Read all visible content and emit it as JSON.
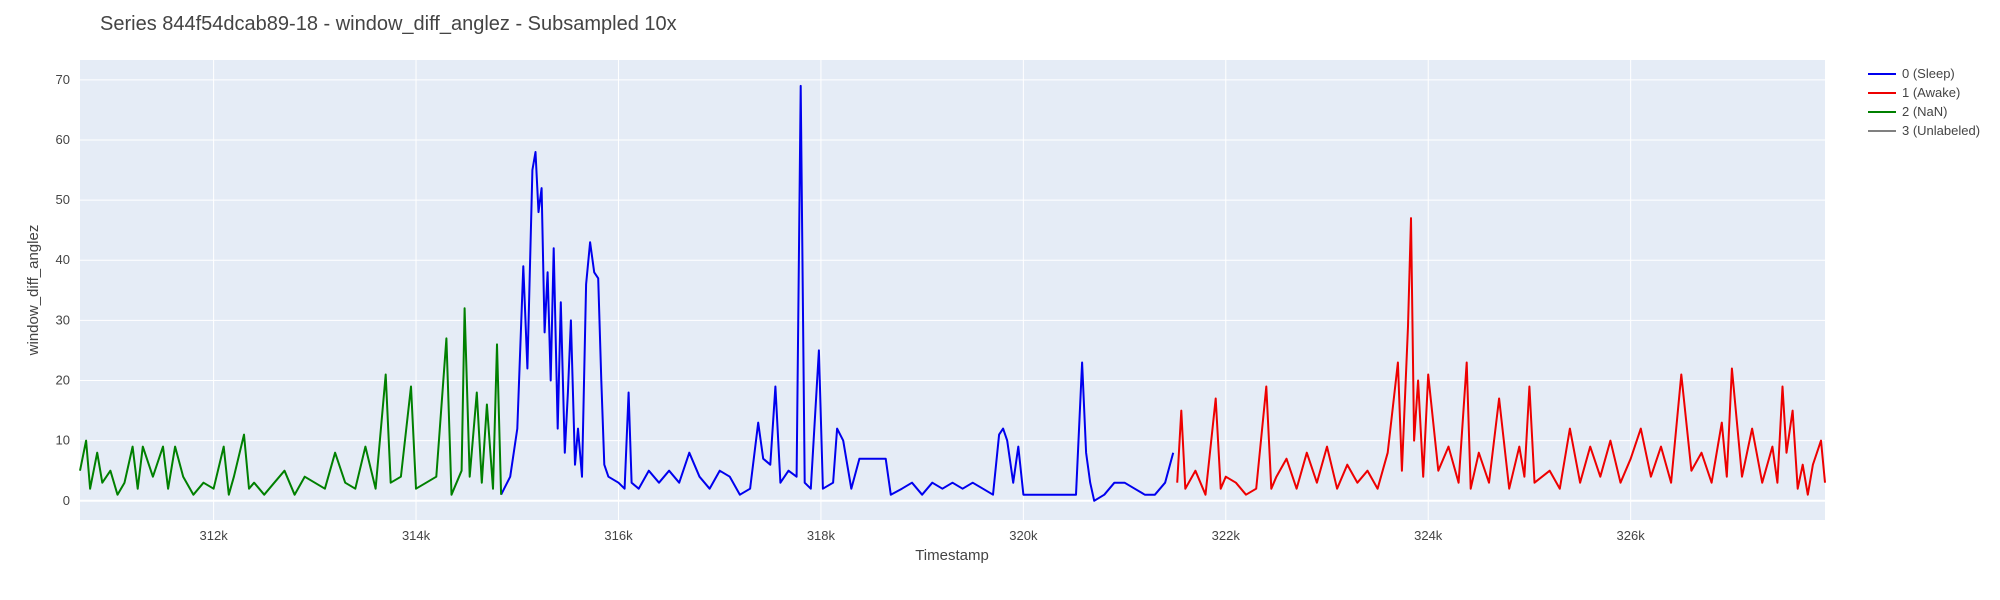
{
  "chart_data": {
    "type": "line",
    "title": "Series 844f54dcab89-18 - window_diff_anglez - Subsampled 10x",
    "xlabel": "Timestamp",
    "ylabel": "window_diff_anglez",
    "xlim": [
      310680,
      327920
    ],
    "ylim": [
      -3.2,
      73.3
    ],
    "x_ticks": [
      312000,
      314000,
      316000,
      318000,
      320000,
      322000,
      324000,
      326000
    ],
    "x_tick_labels": [
      "312k",
      "314k",
      "316k",
      "318k",
      "320k",
      "322k",
      "324k",
      "326k"
    ],
    "y_ticks": [
      0,
      10,
      20,
      30,
      40,
      50,
      60,
      70
    ],
    "y_tick_labels": [
      "0",
      "10",
      "20",
      "30",
      "40",
      "50",
      "60",
      "70"
    ],
    "grid": true,
    "legend_position": "top-right",
    "plot_background": "#e5ecf6",
    "series": [
      {
        "name": "0 (Sleep)",
        "color": "#0000ee",
        "points": [
          [
            314840,
            1
          ],
          [
            314930,
            4
          ],
          [
            315000,
            12
          ],
          [
            315060,
            39
          ],
          [
            315100,
            22
          ],
          [
            315150,
            55
          ],
          [
            315180,
            58
          ],
          [
            315210,
            48
          ],
          [
            315240,
            52
          ],
          [
            315270,
            28
          ],
          [
            315300,
            38
          ],
          [
            315330,
            20
          ],
          [
            315360,
            42
          ],
          [
            315400,
            12
          ],
          [
            315430,
            33
          ],
          [
            315470,
            8
          ],
          [
            315500,
            18
          ],
          [
            315530,
            30
          ],
          [
            315570,
            6
          ],
          [
            315600,
            12
          ],
          [
            315640,
            4
          ],
          [
            315680,
            36
          ],
          [
            315720,
            43
          ],
          [
            315760,
            38
          ],
          [
            315800,
            37
          ],
          [
            315830,
            20
          ],
          [
            315860,
            6
          ],
          [
            315900,
            4
          ],
          [
            316000,
            3
          ],
          [
            316060,
            2
          ],
          [
            316100,
            18
          ],
          [
            316130,
            3
          ],
          [
            316200,
            2
          ],
          [
            316300,
            5
          ],
          [
            316400,
            3
          ],
          [
            316500,
            5
          ],
          [
            316600,
            3
          ],
          [
            316700,
            8
          ],
          [
            316800,
            4
          ],
          [
            316900,
            2
          ],
          [
            317000,
            5
          ],
          [
            317100,
            4
          ],
          [
            317200,
            1
          ],
          [
            317300,
            2
          ],
          [
            317380,
            13
          ],
          [
            317430,
            7
          ],
          [
            317500,
            6
          ],
          [
            317550,
            19
          ],
          [
            317600,
            3
          ],
          [
            317680,
            5
          ],
          [
            317760,
            4
          ],
          [
            317800,
            69
          ],
          [
            317840,
            3
          ],
          [
            317900,
            2
          ],
          [
            317980,
            25
          ],
          [
            318020,
            2
          ],
          [
            318120,
            3
          ],
          [
            318160,
            12
          ],
          [
            318220,
            10
          ],
          [
            318300,
            2
          ],
          [
            318380,
            7
          ],
          [
            318500,
            7
          ],
          [
            318640,
            7
          ],
          [
            318690,
            1
          ],
          [
            318800,
            2
          ],
          [
            318900,
            3
          ],
          [
            319000,
            1
          ],
          [
            319100,
            3
          ],
          [
            319200,
            2
          ],
          [
            319300,
            3
          ],
          [
            319400,
            2
          ],
          [
            319500,
            3
          ],
          [
            319600,
            2
          ],
          [
            319700,
            1
          ],
          [
            319760,
            11
          ],
          [
            319800,
            12
          ],
          [
            319840,
            10
          ],
          [
            319900,
            3
          ],
          [
            319950,
            9
          ],
          [
            320000,
            1
          ],
          [
            320200,
            1
          ],
          [
            320400,
            1
          ],
          [
            320520,
            1
          ],
          [
            320580,
            23
          ],
          [
            320620,
            8
          ],
          [
            320660,
            3
          ],
          [
            320700,
            0
          ],
          [
            320800,
            1
          ],
          [
            320900,
            3
          ],
          [
            321000,
            3
          ],
          [
            321100,
            2
          ],
          [
            321200,
            1
          ],
          [
            321300,
            1
          ],
          [
            321400,
            3
          ],
          [
            321480,
            8
          ]
        ]
      },
      {
        "name": "1 (Awake)",
        "color": "#ee0000",
        "points": [
          [
            321520,
            3
          ],
          [
            321560,
            15
          ],
          [
            321600,
            2
          ],
          [
            321700,
            5
          ],
          [
            321800,
            1
          ],
          [
            321900,
            17
          ],
          [
            321950,
            2
          ],
          [
            322000,
            4
          ],
          [
            322100,
            3
          ],
          [
            322200,
            1
          ],
          [
            322300,
            2
          ],
          [
            322400,
            19
          ],
          [
            322450,
            2
          ],
          [
            322500,
            4
          ],
          [
            322600,
            7
          ],
          [
            322700,
            2
          ],
          [
            322800,
            8
          ],
          [
            322900,
            3
          ],
          [
            323000,
            9
          ],
          [
            323100,
            2
          ],
          [
            323200,
            6
          ],
          [
            323300,
            3
          ],
          [
            323400,
            5
          ],
          [
            323500,
            2
          ],
          [
            323600,
            8
          ],
          [
            323700,
            23
          ],
          [
            323740,
            5
          ],
          [
            323800,
            29
          ],
          [
            323830,
            47
          ],
          [
            323860,
            10
          ],
          [
            323900,
            20
          ],
          [
            323950,
            4
          ],
          [
            324000,
            21
          ],
          [
            324100,
            5
          ],
          [
            324200,
            9
          ],
          [
            324300,
            3
          ],
          [
            324380,
            23
          ],
          [
            324420,
            2
          ],
          [
            324500,
            8
          ],
          [
            324600,
            3
          ],
          [
            324700,
            17
          ],
          [
            324800,
            2
          ],
          [
            324900,
            9
          ],
          [
            324950,
            4
          ],
          [
            325000,
            19
          ],
          [
            325050,
            3
          ],
          [
            325200,
            5
          ],
          [
            325300,
            2
          ],
          [
            325400,
            12
          ],
          [
            325500,
            3
          ],
          [
            325600,
            9
          ],
          [
            325700,
            4
          ],
          [
            325800,
            10
          ],
          [
            325900,
            3
          ],
          [
            326000,
            7
          ],
          [
            326100,
            12
          ],
          [
            326200,
            4
          ],
          [
            326300,
            9
          ],
          [
            326400,
            3
          ],
          [
            326500,
            21
          ],
          [
            326600,
            5
          ],
          [
            326700,
            8
          ],
          [
            326800,
            3
          ],
          [
            326900,
            13
          ],
          [
            326950,
            4
          ],
          [
            327000,
            22
          ],
          [
            327100,
            4
          ],
          [
            327200,
            12
          ],
          [
            327300,
            3
          ],
          [
            327400,
            9
          ],
          [
            327450,
            3
          ],
          [
            327500,
            19
          ],
          [
            327540,
            8
          ],
          [
            327600,
            15
          ],
          [
            327650,
            2
          ],
          [
            327700,
            6
          ],
          [
            327750,
            1
          ],
          [
            327800,
            6
          ],
          [
            327880,
            10
          ],
          [
            327920,
            3
          ]
        ]
      },
      {
        "name": "2 (NaN)",
        "color": "#008000",
        "points": [
          [
            310680,
            5
          ],
          [
            310740,
            10
          ],
          [
            310780,
            2
          ],
          [
            310850,
            8
          ],
          [
            310900,
            3
          ],
          [
            310980,
            5
          ],
          [
            311050,
            1
          ],
          [
            311120,
            3
          ],
          [
            311200,
            9
          ],
          [
            311250,
            2
          ],
          [
            311300,
            9
          ],
          [
            311400,
            4
          ],
          [
            311500,
            9
          ],
          [
            311550,
            2
          ],
          [
            311620,
            9
          ],
          [
            311700,
            4
          ],
          [
            311800,
            1
          ],
          [
            311900,
            3
          ],
          [
            312000,
            2
          ],
          [
            312100,
            9
          ],
          [
            312150,
            1
          ],
          [
            312200,
            4
          ],
          [
            312300,
            11
          ],
          [
            312350,
            2
          ],
          [
            312400,
            3
          ],
          [
            312500,
            1
          ],
          [
            312600,
            3
          ],
          [
            312700,
            5
          ],
          [
            312800,
            1
          ],
          [
            312900,
            4
          ],
          [
            313000,
            3
          ],
          [
            313100,
            2
          ],
          [
            313200,
            8
          ],
          [
            313300,
            3
          ],
          [
            313400,
            2
          ],
          [
            313500,
            9
          ],
          [
            313600,
            2
          ],
          [
            313700,
            21
          ],
          [
            313750,
            3
          ],
          [
            313850,
            4
          ],
          [
            313950,
            19
          ],
          [
            314000,
            2
          ],
          [
            314100,
            3
          ],
          [
            314200,
            4
          ],
          [
            314300,
            27
          ],
          [
            314350,
            1
          ],
          [
            314450,
            5
          ],
          [
            314480,
            32
          ],
          [
            314530,
            4
          ],
          [
            314600,
            18
          ],
          [
            314650,
            3
          ],
          [
            314700,
            16
          ],
          [
            314760,
            2
          ],
          [
            314800,
            26
          ],
          [
            314840,
            1
          ]
        ]
      },
      {
        "name": "3 (Unlabeled)",
        "color": "#808080",
        "points": []
      }
    ]
  }
}
